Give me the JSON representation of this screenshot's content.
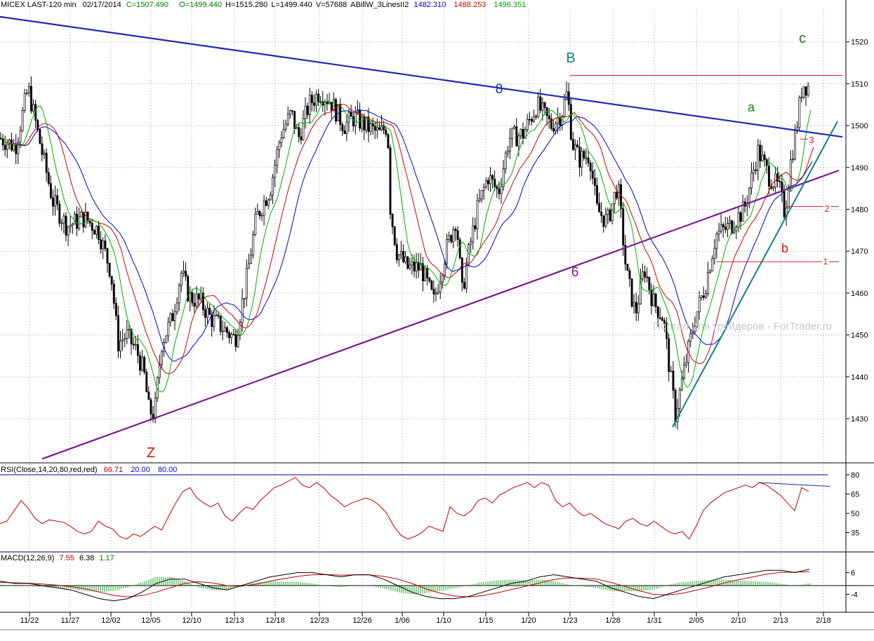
{
  "header": {
    "symbol": "MICEX LAST-120 min",
    "date": "02/17/2014",
    "close": "C=1507.490",
    "open": "O=1499.440",
    "high": "H=1515.280",
    "low": "L=1499.440",
    "volume": "V=57688",
    "indicator": "ABillW_3LinesII2",
    "ind_v1": "1482.310",
    "ind_v2": "1488.253",
    "ind_v3": "1496.351"
  },
  "rsi_header": {
    "label": "RSI(Close,14,20,80,red,red)",
    "value": "66.71",
    "low": "20.00",
    "high": "80.00"
  },
  "macd_header": {
    "label": "MACD(12,26,9)",
    "v1": "7.55",
    "v2": "6.38",
    "v3": "1.17"
  },
  "watermark": "Портал для трейдеров - ForTrader.ru",
  "colors": {
    "price_bar": "#000000",
    "green_ma": "#00b000",
    "red_ma": "#d00000",
    "blue_ma": "#0000c8",
    "trend_blue": "#1a2bb0",
    "trend_purple": "#7a1a8c",
    "trend_teal": "#118080",
    "rsi": "#c00000",
    "macd": "#000000",
    "signal": "#c00000",
    "hist": "#20a020"
  },
  "chart_data": [
    {
      "type": "candlestick",
      "panel": "price",
      "ylim": [
        1420,
        1530
      ],
      "y_ticks": [
        1430,
        1440,
        1450,
        1460,
        1470,
        1480,
        1490,
        1500,
        1510,
        1520
      ],
      "x_tick_labels": [
        "11/22",
        "11/27",
        "12/02",
        "12/05",
        "12/10",
        "12/13",
        "12/18",
        "12/23",
        "12/26",
        "1/06",
        "1/10",
        "1/15",
        "1/20",
        "1/23",
        "1/28",
        "1/31",
        "2/05",
        "2/10",
        "2/13",
        "2/18"
      ],
      "price_path": [
        [
          0,
          1497
        ],
        [
          22,
          1495
        ],
        [
          40,
          1509
        ],
        [
          58,
          1495
        ],
        [
          75,
          1482
        ],
        [
          95,
          1476
        ],
        [
          120,
          1478
        ],
        [
          140,
          1475
        ],
        [
          158,
          1465
        ],
        [
          168,
          1448
        ],
        [
          180,
          1450
        ],
        [
          195,
          1446
        ],
        [
          205,
          1441
        ],
        [
          212,
          1432
        ],
        [
          220,
          1431
        ],
        [
          230,
          1448
        ],
        [
          245,
          1454
        ],
        [
          258,
          1465
        ],
        [
          270,
          1459
        ],
        [
          285,
          1458
        ],
        [
          300,
          1454
        ],
        [
          315,
          1452
        ],
        [
          335,
          1449
        ],
        [
          350,
          1462
        ],
        [
          365,
          1478
        ],
        [
          385,
          1485
        ],
        [
          400,
          1498
        ],
        [
          415,
          1503
        ],
        [
          425,
          1497
        ],
        [
          440,
          1505
        ],
        [
          455,
          1508
        ],
        [
          470,
          1506
        ],
        [
          490,
          1500
        ],
        [
          505,
          1502
        ],
        [
          520,
          1500
        ],
        [
          540,
          1498
        ],
        [
          552,
          1500
        ],
        [
          556,
          1480
        ],
        [
          565,
          1470
        ],
        [
          580,
          1466
        ],
        [
          600,
          1466
        ],
        [
          618,
          1458
        ],
        [
          635,
          1470
        ],
        [
          650,
          1478
        ],
        [
          658,
          1460
        ],
        [
          668,
          1470
        ],
        [
          680,
          1480
        ],
        [
          695,
          1488
        ],
        [
          710,
          1484
        ],
        [
          725,
          1497
        ],
        [
          745,
          1498
        ],
        [
          765,
          1505
        ],
        [
          785,
          1500
        ],
        [
          800,
          1503
        ],
        [
          808,
          1508
        ],
        [
          815,
          1496
        ],
        [
          825,
          1492
        ],
        [
          840,
          1493
        ],
        [
          850,
          1480
        ],
        [
          865,
          1477
        ],
        [
          880,
          1486
        ],
        [
          892,
          1465
        ],
        [
          905,
          1455
        ],
        [
          918,
          1466
        ],
        [
          930,
          1458
        ],
        [
          945,
          1454
        ],
        [
          955,
          1440
        ],
        [
          962,
          1431
        ],
        [
          975,
          1442
        ],
        [
          990,
          1454
        ],
        [
          1005,
          1462
        ],
        [
          1020,
          1474
        ],
        [
          1040,
          1476
        ],
        [
          1060,
          1480
        ],
        [
          1080,
          1494
        ],
        [
          1095,
          1488
        ],
        [
          1110,
          1485
        ],
        [
          1118,
          1479
        ],
        [
          1125,
          1490
        ],
        [
          1135,
          1500
        ],
        [
          1143,
          1510
        ],
        [
          1155,
          1509
        ]
      ],
      "moving_averages": [
        {
          "name": "ABillW green",
          "value": 1496.351
        },
        {
          "name": "ABillW red",
          "value": 1488.253
        },
        {
          "name": "ABillW blue",
          "value": 1482.31
        }
      ],
      "annotations": [
        {
          "text": "Z",
          "price": 1423
        },
        {
          "text": "B",
          "price": 1520
        },
        {
          "text": "c",
          "price": 1521
        },
        {
          "text": "a",
          "price": 1504
        },
        {
          "text": "b",
          "price": 1470
        },
        {
          "text": "8",
          "price": 1509
        },
        {
          "text": "6",
          "price": 1465
        },
        {
          "text": "1",
          "price": 1467.5
        },
        {
          "text": "2",
          "price": 1480.7
        },
        {
          "text": "3",
          "price": 1496.8
        }
      ],
      "horizontal_lines": [
        1512,
        1467.5,
        1480.7,
        1496.8
      ],
      "trendlines": [
        {
          "name": "upper descending",
          "label": "8"
        },
        {
          "name": "lower ascending",
          "label": "6"
        },
        {
          "name": "steep support",
          "label": ""
        }
      ]
    },
    {
      "type": "line",
      "panel": "rsi",
      "ylim": [
        20,
        85
      ],
      "y_ticks": [
        35,
        50,
        65,
        80
      ],
      "levels": [
        80,
        20
      ],
      "current": 66.71,
      "values": [
        42,
        44,
        52,
        60,
        54,
        46,
        42,
        45,
        44,
        43,
        40,
        36,
        34,
        36,
        44,
        40,
        38,
        32,
        30,
        34,
        32,
        36,
        40,
        37,
        48,
        58,
        67,
        70,
        62,
        58,
        55,
        58,
        48,
        44,
        50,
        55,
        53,
        60,
        65,
        70,
        72,
        75,
        78,
        72,
        70,
        74,
        70,
        64,
        60,
        55,
        58,
        60,
        62,
        60,
        56,
        50,
        40,
        33,
        30,
        32,
        35,
        40,
        38,
        36,
        55,
        50,
        48,
        52,
        60,
        62,
        58,
        64,
        67,
        70,
        72,
        74,
        70,
        74,
        72,
        60,
        55,
        58,
        52,
        48,
        50,
        46,
        42,
        40,
        38,
        44,
        46,
        42,
        40,
        44,
        40,
        36,
        34,
        36,
        30,
        40,
        52,
        58,
        62,
        66,
        68,
        70,
        72,
        70,
        74,
        72,
        68,
        64,
        58,
        52,
        70,
        67
      ]
    },
    {
      "type": "line",
      "panel": "macd",
      "ylim": [
        -8,
        12
      ],
      "y_ticks": [
        -4,
        6
      ],
      "current": {
        "macd": 7.55,
        "signal": 6.38,
        "histogram": 1.17
      },
      "macd_values": [
        2,
        1,
        1,
        0,
        -1,
        -2,
        -4,
        -6,
        -7,
        -6,
        -3,
        1,
        3,
        3,
        1,
        -1,
        -2,
        0,
        2,
        4,
        5,
        6,
        6,
        5,
        4,
        5,
        5,
        3,
        0,
        -3,
        -5,
        -6,
        -6,
        -5,
        -3,
        -1,
        1,
        2,
        4,
        5,
        4,
        3,
        2,
        -1,
        -3,
        -5,
        -6,
        -4,
        -2,
        0,
        2,
        4,
        5,
        6,
        7,
        7,
        6,
        7.55
      ],
      "signal_values": [
        1.5,
        1.3,
        1.1,
        0.7,
        0.2,
        -0.5,
        -1.5,
        -3,
        -4.5,
        -5.2,
        -4.6,
        -3,
        -1,
        1,
        1.8,
        1.2,
        0,
        -0.3,
        0.6,
        2,
        3.2,
        4.3,
        5,
        5.1,
        4.8,
        4.9,
        4.9,
        4.3,
        3,
        1,
        -1.5,
        -3.5,
        -4.8,
        -5.2,
        -4.6,
        -3.4,
        -1.8,
        -0.4,
        1.2,
        2.8,
        3.5,
        3.4,
        3,
        1.5,
        -0.4,
        -2.4,
        -4,
        -4.3,
        -3.6,
        -2.2,
        -0.6,
        1.2,
        2.7,
        4,
        5.3,
        6.1,
        6.2,
        6.38
      ]
    }
  ]
}
